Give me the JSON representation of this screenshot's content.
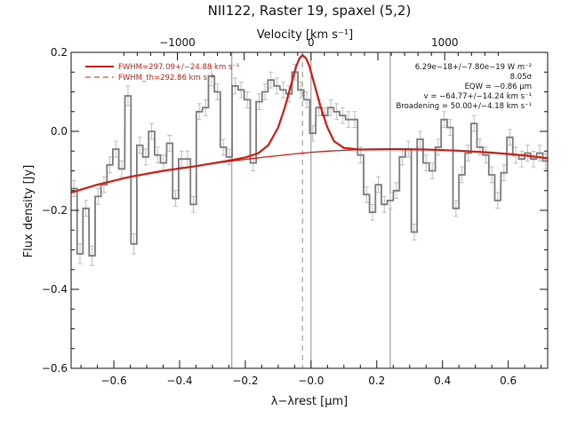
{
  "chart_data": {
    "type": "line",
    "title": "NII122, Raster 19, spaxel (5,2)",
    "xlabel": "λ−λrest [μm]",
    "ylabel": "Flux density [Jy]",
    "top_axis_label": "Velocity [km s⁻¹]",
    "xlim": [
      -0.73,
      0.72
    ],
    "ylim": [
      -0.6,
      0.2
    ],
    "x_ticks": [
      -0.6,
      -0.4,
      -0.2,
      0.0,
      0.2,
      0.4,
      0.6
    ],
    "x_tick_labels": [
      "−0.6",
      "−0.4",
      "−0.2",
      "−0.0",
      "0.2",
      "0.4",
      "0.6"
    ],
    "y_ticks": [
      -0.6,
      -0.4,
      -0.2,
      0.0,
      0.2
    ],
    "y_tick_labels": [
      "−0.6",
      "−0.4",
      "−0.2",
      "0.0",
      "0.2"
    ],
    "top_ticks_um": [
      -0.4068,
      0.0,
      0.4068
    ],
    "top_tick_labels": [
      "−1000",
      "0",
      "1000"
    ],
    "vertical_lines_solid": [
      -0.241,
      0.0,
      0.241
    ],
    "vertical_line_dashed": -0.026,
    "legend": [
      {
        "label": "FWHM=297.09+/−24.88 km s⁻¹",
        "style": "solid",
        "color": "#d41a10"
      },
      {
        "label": "FWHM_th=292.86 km s⁻¹",
        "style": "dashed",
        "color": "#d41a10"
      }
    ],
    "annotations": [
      "6.29e−18+/−7.80e−19 W m⁻²",
      "8.05σ",
      "EQW = −0.86 μm",
      "v = −64.77+/−14.24 km s⁻¹",
      "Broadening = 50.00+/−4.18 km s⁻¹"
    ],
    "series": [
      {
        "style": "steps",
        "color": "#7a7a7a",
        "x": [
          -0.721,
          -0.703,
          -0.685,
          -0.666,
          -0.648,
          -0.63,
          -0.612,
          -0.594,
          -0.576,
          -0.557,
          -0.539,
          -0.521,
          -0.503,
          -0.485,
          -0.467,
          -0.449,
          -0.43,
          -0.412,
          -0.394,
          -0.376,
          -0.358,
          -0.34,
          -0.321,
          -0.303,
          -0.285,
          -0.267,
          -0.249,
          -0.231,
          -0.213,
          -0.194,
          -0.176,
          -0.158,
          -0.14,
          -0.122,
          -0.104,
          -0.085,
          -0.067,
          -0.049,
          -0.031,
          -0.013,
          0.005,
          0.024,
          0.042,
          0.06,
          0.078,
          0.096,
          0.114,
          0.133,
          0.151,
          0.169,
          0.187,
          0.205,
          0.223,
          0.241,
          0.26,
          0.278,
          0.296,
          0.314,
          0.332,
          0.35,
          0.369,
          0.387,
          0.405,
          0.423,
          0.441,
          0.459,
          0.478,
          0.496,
          0.514,
          0.532,
          0.55,
          0.568,
          0.587,
          0.605,
          0.623,
          0.641,
          0.659,
          0.677,
          0.696,
          0.714
        ],
        "y": [
          -0.145,
          -0.31,
          -0.195,
          -0.315,
          -0.165,
          -0.135,
          -0.085,
          -0.045,
          -0.095,
          0.09,
          -0.285,
          -0.035,
          -0.065,
          0.0,
          -0.06,
          -0.08,
          -0.03,
          -0.17,
          -0.07,
          -0.07,
          -0.185,
          0.05,
          0.06,
          0.14,
          0.1,
          -0.04,
          -0.065,
          0.115,
          0.105,
          0.08,
          -0.08,
          0.075,
          0.1,
          0.13,
          0.115,
          0.105,
          0.095,
          0.15,
          0.105,
          0.08,
          -0.005,
          0.06,
          0.04,
          0.06,
          0.05,
          0.04,
          0.03,
          0.03,
          -0.06,
          -0.16,
          -0.205,
          -0.135,
          -0.185,
          -0.175,
          -0.15,
          -0.065,
          -0.045,
          -0.255,
          -0.02,
          -0.08,
          -0.1,
          -0.04,
          0.03,
          0.01,
          -0.195,
          -0.11,
          -0.055,
          0.02,
          -0.04,
          -0.06,
          -0.11,
          -0.175,
          -0.105,
          -0.015,
          -0.06,
          -0.07,
          -0.055,
          -0.07,
          -0.055,
          -0.075
        ],
        "errors": [
          0.02,
          0.025,
          0.02,
          0.025,
          0.02,
          0.02,
          0.02,
          0.02,
          0.02,
          0.025,
          0.025,
          0.02,
          0.02,
          0.02,
          0.02,
          0.02,
          0.02,
          0.02,
          0.02,
          0.02,
          0.02,
          0.02,
          0.02,
          0.025,
          0.02,
          0.02,
          0.02,
          0.02,
          0.02,
          0.02,
          0.02,
          0.02,
          0.02,
          0.02,
          0.02,
          0.02,
          0.02,
          0.02,
          0.02,
          0.02,
          0.02,
          0.02,
          0.02,
          0.02,
          0.02,
          0.02,
          0.02,
          0.02,
          0.02,
          0.02,
          0.02,
          0.02,
          0.02,
          0.02,
          0.02,
          0.02,
          0.02,
          0.02,
          0.02,
          0.02,
          0.02,
          0.02,
          0.02,
          0.02,
          0.02,
          0.02,
          0.02,
          0.02,
          0.02,
          0.02,
          0.02,
          0.02,
          0.02,
          0.02,
          0.02,
          0.02,
          0.02,
          0.02,
          0.02,
          0.02
        ]
      },
      {
        "style": "line",
        "color": "#d41a10",
        "width": 1.3,
        "x": [
          -0.73,
          -0.65,
          -0.55,
          -0.45,
          -0.35,
          -0.25,
          -0.15,
          -0.05,
          0.0,
          0.05,
          0.15,
          0.25,
          0.35,
          0.45,
          0.55,
          0.65,
          0.72
        ],
        "y": [
          -0.155,
          -0.135,
          -0.115,
          -0.1,
          -0.088,
          -0.076,
          -0.066,
          -0.057,
          -0.053,
          -0.05,
          -0.046,
          -0.045,
          -0.046,
          -0.049,
          -0.054,
          -0.061,
          -0.068
        ]
      },
      {
        "style": "line",
        "color": "#d41a10",
        "width": 2.2,
        "x": [
          -0.73,
          -0.65,
          -0.55,
          -0.45,
          -0.35,
          -0.25,
          -0.2,
          -0.16,
          -0.13,
          -0.1,
          -0.08,
          -0.06,
          -0.045,
          -0.035,
          -0.026,
          -0.015,
          -0.005,
          0.01,
          0.03,
          0.05,
          0.07,
          0.1,
          0.15,
          0.25,
          0.35,
          0.45,
          0.55,
          0.65,
          0.72
        ],
        "y": [
          -0.155,
          -0.135,
          -0.115,
          -0.1,
          -0.088,
          -0.074,
          -0.066,
          -0.055,
          -0.035,
          0.01,
          0.06,
          0.12,
          0.165,
          0.185,
          0.193,
          0.185,
          0.165,
          0.12,
          0.06,
          0.01,
          -0.025,
          -0.042,
          -0.046,
          -0.045,
          -0.046,
          -0.049,
          -0.054,
          -0.061,
          -0.068
        ]
      }
    ]
  }
}
